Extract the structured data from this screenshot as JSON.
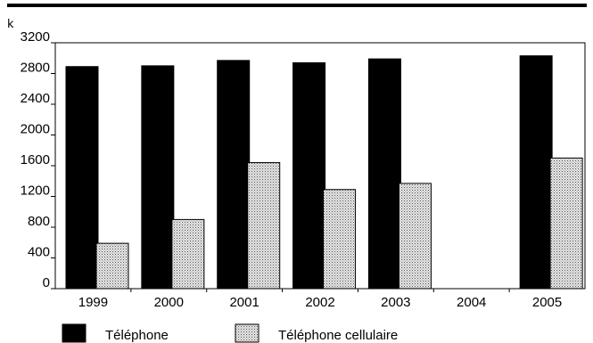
{
  "chart_data": {
    "type": "bar",
    "unit_label": "k",
    "categories": [
      "1999",
      "2000",
      "2001",
      "2002",
      "2003",
      "2004",
      "2005"
    ],
    "series": [
      {
        "name": "Téléphone",
        "color": "#000000",
        "pattern": "solid",
        "values": [
          2890,
          2900,
          2970,
          2940,
          2990,
          0,
          3030
        ]
      },
      {
        "name": "Téléphone cellulaire",
        "color": "#cfcfcf",
        "pattern": "dotted",
        "values": [
          590,
          900,
          1640,
          1290,
          1370,
          0,
          1700
        ]
      }
    ],
    "yticks": [
      0,
      400,
      800,
      1200,
      1600,
      2000,
      2400,
      2800,
      3200
    ],
    "ylim": [
      0,
      3200
    ],
    "grid": false,
    "legend_position": "bottom"
  }
}
